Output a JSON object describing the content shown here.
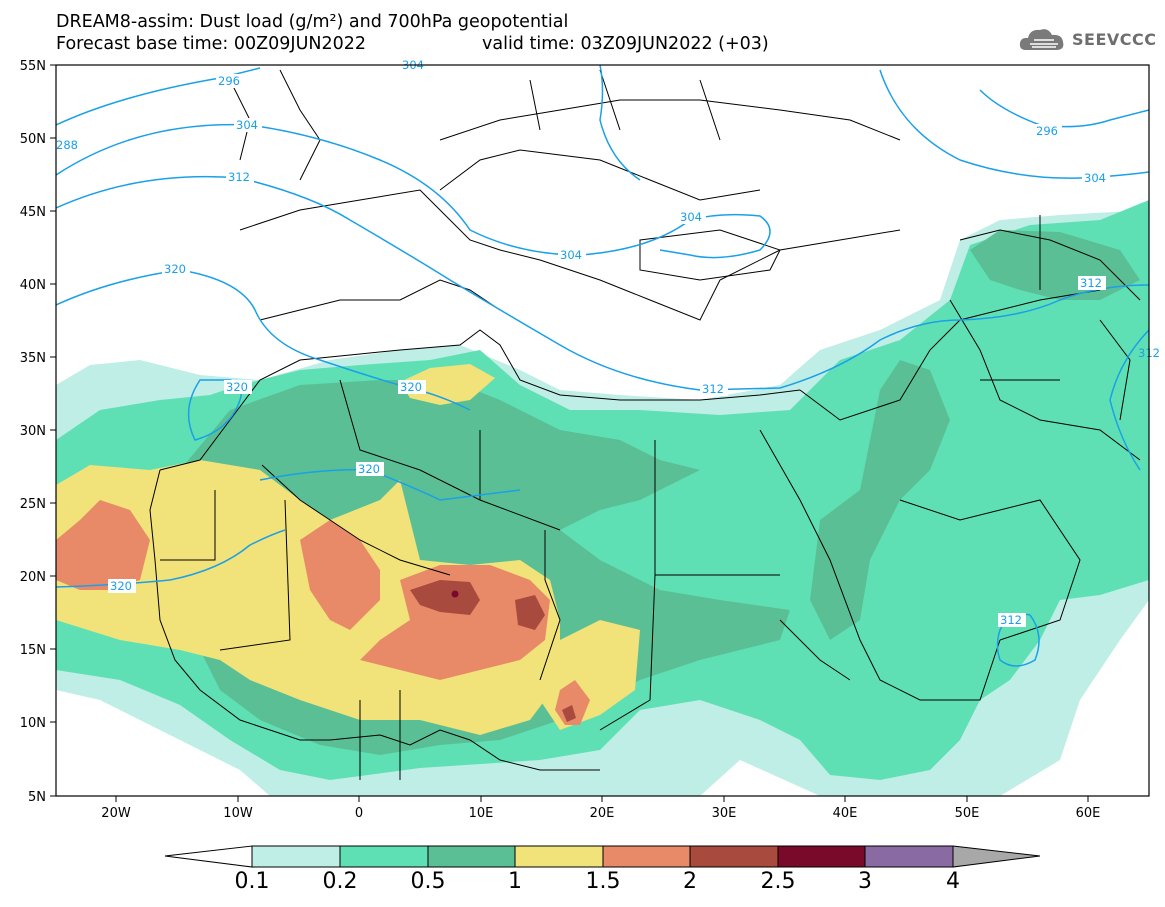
{
  "title": {
    "line1": "DREAM8-assim: Dust load (g/m²) and 700hPa geopotential",
    "line2": "Forecast base time: 00Z09JUN2022",
    "valid": "valid time: 03Z09JUN2022 (+03)"
  },
  "logo": {
    "text": "SEEVCCC",
    "icon": "cloud-icon"
  },
  "axes": {
    "lat_labels": [
      "55N",
      "50N",
      "45N",
      "40N",
      "35N",
      "30N",
      "25N",
      "20N",
      "15N",
      "10N",
      "5N"
    ],
    "lon_labels": [
      "20W",
      "10W",
      "0",
      "10E",
      "20E",
      "30E",
      "40E",
      "50E",
      "60E"
    ]
  },
  "contour_labels": [
    "296",
    "304",
    "312",
    "320",
    "304",
    "320",
    "312",
    "320",
    "320",
    "304",
    "296",
    "304",
    "312",
    "312",
    "320",
    "304",
    "312",
    "288"
  ],
  "colorbar": {
    "labels": [
      "0.1",
      "0.2",
      "0.5",
      "1",
      "1.5",
      "2",
      "2.5",
      "3",
      "4"
    ],
    "colors": [
      "#ffffff",
      "#bfeee6",
      "#5fe0b4",
      "#5bbf96",
      "#f2e27a",
      "#e88a68",
      "#a84a3e",
      "#7a0a2a",
      "#8a6aa2",
      "#a8a8a8"
    ]
  },
  "colors": {
    "geopotential": "#1aa0e8",
    "border": "#000000"
  }
}
